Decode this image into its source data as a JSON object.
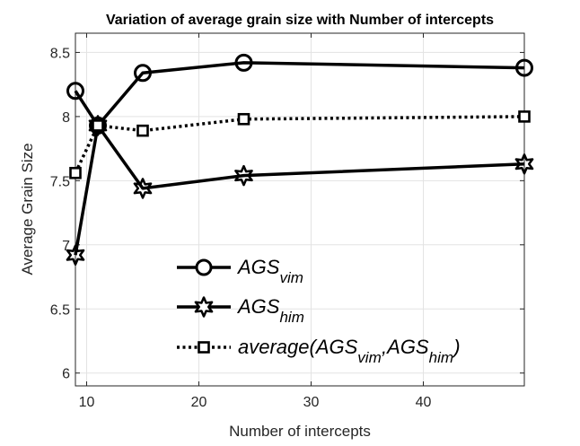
{
  "chart_data": {
    "type": "line",
    "title": "Variation of average grain size with Number of intercepts",
    "xlabel": "Number of intercepts",
    "ylabel": "Average Grain Size",
    "xlim": [
      9,
      49
    ],
    "ylim": [
      5.9,
      8.65
    ],
    "xticks": [
      10,
      20,
      30,
      40
    ],
    "yticks": [
      6,
      6.5,
      7,
      7.5,
      8,
      8.5
    ],
    "xtick_labels": [
      "10",
      "20",
      "30",
      "40"
    ],
    "ytick_labels": [
      "6",
      "6.5",
      "7",
      "7.5",
      "8",
      "8.5"
    ],
    "grid": true,
    "legend_position": "lower-center",
    "x": [
      9,
      11,
      15,
      24,
      49
    ],
    "series": [
      {
        "name": "AGS_vim",
        "legend": {
          "base": "AGS",
          "sub": "vim"
        },
        "values": [
          8.2,
          7.93,
          8.34,
          8.42,
          8.38
        ],
        "marker": "circle",
        "linestyle": "solid",
        "color": "#000000"
      },
      {
        "name": "AGS_him",
        "legend": {
          "base": "AGS",
          "sub": "him"
        },
        "values": [
          6.92,
          7.93,
          7.44,
          7.54,
          7.63
        ],
        "marker": "hexagram",
        "linestyle": "solid",
        "color": "#000000"
      },
      {
        "name": "average(AGS_vim,AGS_him)",
        "legend": {
          "prefix": "average(AGS",
          "sub1": "vim",
          "mid": ",AGS",
          "sub2": "him",
          "suffix": ")"
        },
        "values": [
          7.56,
          7.93,
          7.89,
          7.98,
          8.0
        ],
        "marker": "square",
        "linestyle": "dotted",
        "color": "#000000"
      }
    ]
  }
}
